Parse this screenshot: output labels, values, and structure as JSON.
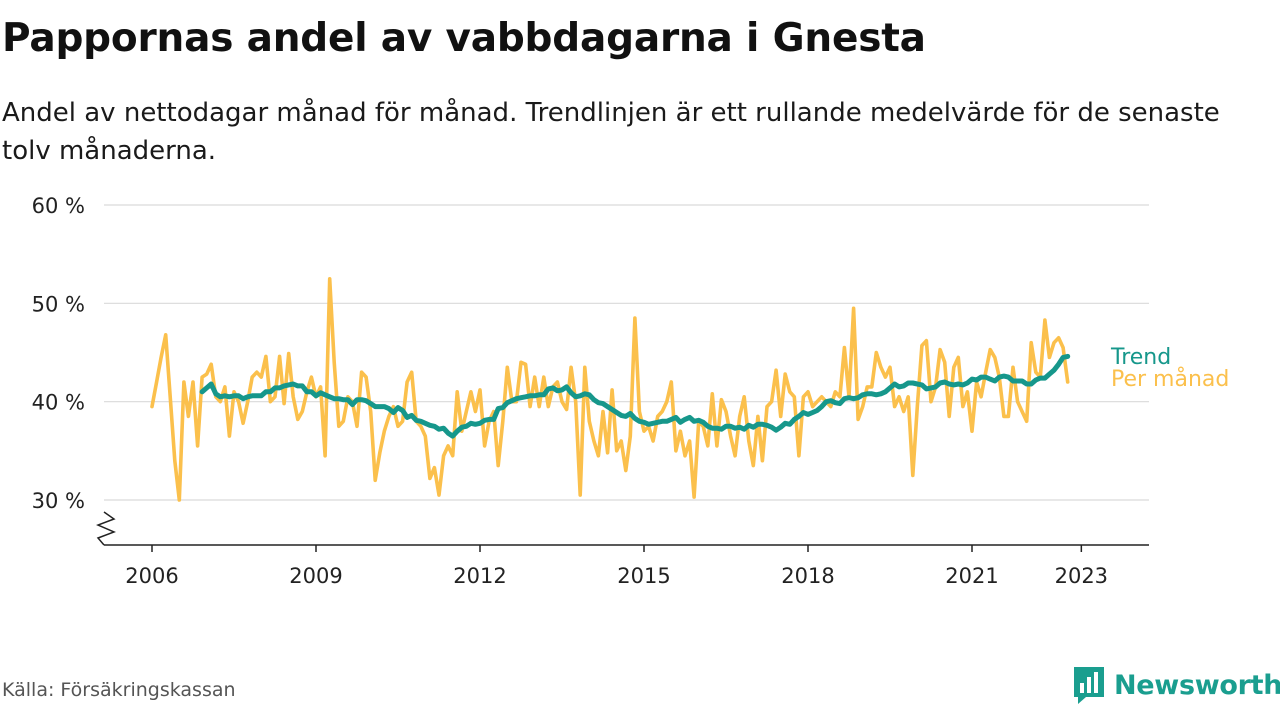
{
  "title": "Pappornas andel av vabbdagarna i Gnesta",
  "subtitle": "Andel av nettodagar månad för månad. Trendlinjen är ett rullande medelvärde för de senaste tolv månaderna.",
  "source": "Källa: Försäkringskassan",
  "brand": {
    "name": "Newsworthy",
    "icon": "bar-chart-logo-icon"
  },
  "colors": {
    "trend": "#16978b",
    "monthly": "#fbc04c",
    "grid": "#d9d9d9",
    "axis": "#222222",
    "brand": "#1a9e8f"
  },
  "chart_data": {
    "type": "line",
    "title": "Pappornas andel av vabbdagarna i Gnesta",
    "xlabel": "",
    "ylabel": "",
    "x_type": "date",
    "ylim": [
      25,
      60
    ],
    "y_ticks": [
      30,
      40,
      50,
      60
    ],
    "y_tick_labels": [
      "30 %",
      "40 %",
      "50 %",
      "60 %"
    ],
    "y_axis_break": true,
    "x_ticks": [
      "2006-01",
      "2009-01",
      "2012-01",
      "2015-01",
      "2018-01",
      "2021-01",
      "2023-01"
    ],
    "x_tick_labels": [
      "2006",
      "2009",
      "2012",
      "2015",
      "2018",
      "2021",
      "2023"
    ],
    "grid": true,
    "legend": "direct-labels-right",
    "series": [
      {
        "name": "Per månad",
        "start": "2006-01",
        "values": [
          39.5,
          42,
          44.5,
          46.8,
          40.5,
          34,
          30,
          42,
          38.5,
          42,
          35.5,
          42.5,
          42.8,
          43.8,
          40.5,
          40,
          41.5,
          36.5,
          41,
          40,
          37.8,
          40,
          42.5,
          43,
          42.5,
          44.6,
          40,
          40.5,
          44.6,
          39.8,
          44.9,
          40.5,
          38.2,
          39,
          41,
          42.5,
          40.5,
          41.5,
          34.5,
          52.5,
          44,
          37.5,
          38,
          40.5,
          40,
          37.5,
          43,
          42.5,
          39,
          32,
          34.8,
          37,
          38.5,
          39.5,
          37.5,
          38,
          42,
          43,
          38,
          37.5,
          36.5,
          32.2,
          33.3,
          30.5,
          34.5,
          35.5,
          34.5,
          41,
          37,
          39,
          41,
          39,
          41.2,
          35.5,
          38,
          39,
          33.5,
          38,
          43.5,
          40,
          40,
          44,
          43.8,
          39.5,
          42.5,
          39.5,
          42.5,
          39.5,
          41.5,
          42,
          40,
          39.2,
          43.5,
          40,
          30.5,
          43.5,
          38,
          36,
          34.5,
          39,
          34.8,
          41.2,
          35,
          36,
          33,
          36.5,
          48.5,
          39,
          37,
          37.5,
          36,
          38.5,
          39,
          40,
          42,
          35,
          37,
          34.5,
          36,
          30.3,
          38,
          37.5,
          35.5,
          40.8,
          35.5,
          40.2,
          39,
          36.5,
          34.5,
          38.5,
          40.5,
          36,
          33.5,
          38.5,
          34,
          39.5,
          40,
          43.2,
          38.5,
          42.8,
          41,
          40.5,
          34.5,
          40.5,
          41,
          39.5,
          40,
          40.5,
          40,
          39.5,
          41,
          40.5,
          45.5,
          40.5,
          49.5,
          38.2,
          39.5,
          41.5,
          41.5,
          45,
          43.5,
          42.5,
          43.5,
          39.5,
          40.5,
          39,
          40.5,
          32.5,
          39.5,
          45.7,
          46.2,
          40,
          41.5,
          45.3,
          44,
          38.5,
          43.5,
          44.5,
          39.5,
          41,
          37,
          42,
          40.5,
          43,
          45.3,
          44.5,
          42.5,
          38.5,
          38.5,
          43.5,
          40,
          39,
          38,
          46,
          43,
          42.5,
          48.3,
          44.5,
          46,
          46.5,
          45.5,
          42
        ]
      },
      {
        "name": "Trend",
        "start": "2006-12",
        "values": [
          41,
          41.4,
          41.8,
          40.8,
          40.5,
          40.6,
          40.5,
          40.6,
          40.6,
          40.3,
          40.5,
          40.6,
          40.6,
          40.6,
          41,
          41,
          41.4,
          41.4,
          41.6,
          41.7,
          41.8,
          41.6,
          41.6,
          41,
          41,
          40.6,
          40.9,
          40.7,
          40.5,
          40.3,
          40.3,
          40.2,
          40.2,
          39.7,
          40.2,
          40.2,
          40.1,
          39.8,
          39.5,
          39.5,
          39.5,
          39.3,
          38.9,
          39.4,
          39.1,
          38.4,
          38.6,
          38.1,
          38,
          37.8,
          37.6,
          37.5,
          37.2,
          37.3,
          36.8,
          36.5,
          37,
          37.4,
          37.5,
          37.8,
          37.7,
          37.8,
          38.1,
          38.2,
          38.2,
          39.3,
          39.4,
          39.9,
          40.1,
          40.3,
          40.4,
          40.5,
          40.6,
          40.6,
          40.7,
          40.7,
          41.3,
          41.4,
          41.1,
          41.2,
          41.5,
          40.9,
          40.5,
          40.6,
          40.8,
          40.7,
          40.2,
          39.9,
          39.8,
          39.5,
          39.2,
          38.9,
          38.6,
          38.5,
          38.8,
          38.3,
          38,
          37.9,
          37.7,
          37.8,
          37.9,
          38,
          38,
          38.2,
          38.4,
          37.9,
          38.2,
          38.4,
          38,
          38.1,
          37.9,
          37.5,
          37.3,
          37.3,
          37.2,
          37.5,
          37.5,
          37.3,
          37.4,
          37.2,
          37.6,
          37.4,
          37.7,
          37.7,
          37.6,
          37.4,
          37.1,
          37.4,
          37.8,
          37.7,
          38.2,
          38.5,
          38.9,
          38.7,
          38.9,
          39.1,
          39.5,
          40,
          40.1,
          39.9,
          39.8,
          40.3,
          40.4,
          40.3,
          40.4,
          40.7,
          40.8,
          40.8,
          40.7,
          40.8,
          41,
          41.4,
          41.8,
          41.5,
          41.6,
          41.9,
          41.9,
          41.8,
          41.7,
          41.3,
          41.4,
          41.5,
          41.9,
          42,
          41.8,
          41.7,
          41.8,
          41.7,
          41.9,
          42.3,
          42.2,
          42.5,
          42.5,
          42.3,
          42.1,
          42.5,
          42.6,
          42.5,
          42.1,
          42.1,
          42.1,
          41.8,
          41.8,
          42.2,
          42.4,
          42.4,
          42.8,
          43.2,
          43.8,
          44.5,
          44.6
        ]
      }
    ]
  }
}
